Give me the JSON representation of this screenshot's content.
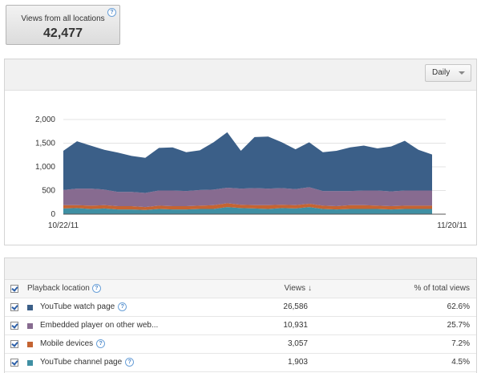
{
  "summary": {
    "label": "Views from all locations",
    "value": "42,477"
  },
  "controls": {
    "granularity": "Daily"
  },
  "chart_data": {
    "type": "area",
    "stacked": true,
    "x_start_label": "10/22/11",
    "x_end_label": "11/20/11",
    "yticks": [
      "2,000",
      "1,500",
      "1,000",
      "500",
      "0"
    ],
    "ylim": [
      0,
      2000
    ],
    "grid": true,
    "series": [
      {
        "color": "#3b5f88",
        "values": [
          830,
          1000,
          910,
          840,
          830,
          760,
          740,
          900,
          910,
          820,
          840,
          1000,
          1170,
          800,
          1080,
          1100,
          970,
          840,
          950,
          820,
          850,
          920,
          950,
          890,
          950,
          1050,
          860,
          760
        ]
      },
      {
        "color": "#876b90",
        "values": [
          320,
          350,
          360,
          330,
          300,
          300,
          300,
          320,
          330,
          320,
          330,
          330,
          330,
          340,
          360,
          350,
          350,
          340,
          350,
          310,
          320,
          300,
          310,
          320,
          310,
          320,
          320,
          320
        ]
      },
      {
        "color": "#c46432",
        "values": [
          70,
          60,
          70,
          70,
          70,
          70,
          60,
          70,
          70,
          70,
          70,
          80,
          80,
          70,
          70,
          80,
          70,
          70,
          70,
          70,
          70,
          80,
          80,
          70,
          70,
          70,
          70,
          70
        ]
      },
      {
        "color": "#3f8fa3",
        "values": [
          120,
          130,
          110,
          120,
          100,
          100,
          90,
          110,
          100,
          100,
          110,
          110,
          150,
          130,
          120,
          110,
          130,
          120,
          150,
          110,
          100,
          110,
          110,
          110,
          100,
          110,
          110,
          110
        ]
      }
    ]
  },
  "table": {
    "headers": {
      "location": "Playback location",
      "views": "Views",
      "pct": "% of total views"
    },
    "rows": [
      {
        "label": "YouTube watch page",
        "views": "26,586",
        "pct": "62.6%",
        "color": "#3b5f88",
        "help": true
      },
      {
        "label": "Embedded player on other web...",
        "views": "10,931",
        "pct": "25.7%",
        "color": "#876b90",
        "help": false
      },
      {
        "label": "Mobile devices",
        "views": "3,057",
        "pct": "7.2%",
        "color": "#c46432",
        "help": true
      },
      {
        "label": "YouTube channel page",
        "views": "1,903",
        "pct": "4.5%",
        "color": "#3f8fa3",
        "help": true
      }
    ]
  }
}
